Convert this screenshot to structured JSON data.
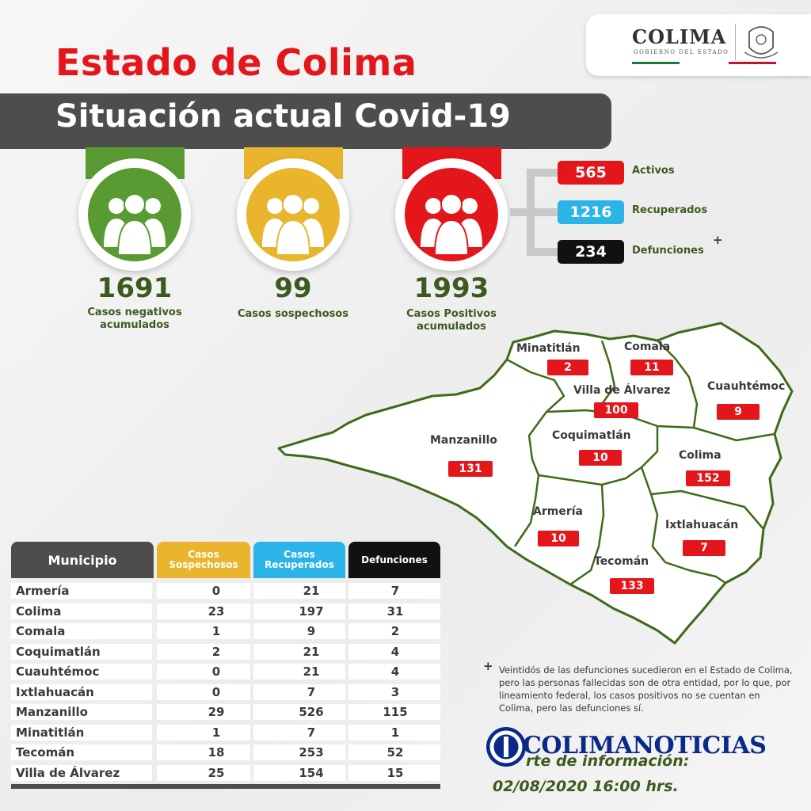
{
  "header": {
    "title": "Estado de Colima",
    "subtitle": "Situación actual Covid-19",
    "logo_title": "COLIMA",
    "logo_subtitle": "GOBIERNO DEL ESTADO"
  },
  "summary": [
    {
      "value": "1691",
      "label_line1": "Casos negativos",
      "label_line2": "acumulados",
      "color": "#5a9a32",
      "icon": "people-group-icon"
    },
    {
      "value": "99",
      "label_line1": "Casos sospechosos",
      "label_line2": "",
      "color": "#e8b52c",
      "icon": "people-group-icon"
    },
    {
      "value": "1993",
      "label_line1": "Casos Positivos",
      "label_line2": "acumulados",
      "color": "#e3161b",
      "icon": "people-group-icon"
    }
  ],
  "breakdown": [
    {
      "value": "565",
      "label": "Activos",
      "color": "#e3161b"
    },
    {
      "value": "1216",
      "label": "Recuperados",
      "color": "#2bb4e8"
    },
    {
      "value": "234",
      "label": "Defunciones",
      "color": "#111111",
      "mark": "+"
    }
  ],
  "map": [
    {
      "name": "Minatitlán",
      "value": "2"
    },
    {
      "name": "Comala",
      "value": "11"
    },
    {
      "name": "Villa de Álvarez",
      "value": "100"
    },
    {
      "name": "Cuauhtémoc",
      "value": "9"
    },
    {
      "name": "Manzanillo",
      "value": "131"
    },
    {
      "name": "Coquimatlán",
      "value": "10"
    },
    {
      "name": "Colima",
      "value": "152"
    },
    {
      "name": "Armería",
      "value": "10"
    },
    {
      "name": "Ixtlahuacán",
      "value": "7"
    },
    {
      "name": "Tecomán",
      "value": "133"
    }
  ],
  "table": {
    "headers": {
      "municipio": "Municipio",
      "sospechosos_1": "Casos",
      "sospechosos_2": "Sospechosos",
      "recuperados_1": "Casos",
      "recuperados_2": "Recuperados",
      "defunciones": "Defunciones"
    },
    "header_colors": {
      "municipio": "#4d4d4d",
      "sospechosos": "#e8b52c",
      "recuperados": "#2bb4e8",
      "defunciones": "#111111"
    },
    "rows": [
      {
        "municipio": "Armería",
        "sospechosos": "0",
        "recuperados": "21",
        "defunciones": "7"
      },
      {
        "municipio": "Colima",
        "sospechosos": "23",
        "recuperados": "197",
        "defunciones": "31"
      },
      {
        "municipio": "Comala",
        "sospechosos": "1",
        "recuperados": "9",
        "defunciones": "2"
      },
      {
        "municipio": "Coquimatlán",
        "sospechosos": "2",
        "recuperados": "21",
        "defunciones": "4"
      },
      {
        "municipio": "Cuauhtémoc",
        "sospechosos": "0",
        "recuperados": "21",
        "defunciones": "4"
      },
      {
        "municipio": "Ixtlahuacán",
        "sospechosos": "0",
        "recuperados": "7",
        "defunciones": "3"
      },
      {
        "municipio": "Manzanillo",
        "sospechosos": "29",
        "recuperados": "526",
        "defunciones": "115"
      },
      {
        "municipio": "Minatitlán",
        "sospechosos": "1",
        "recuperados": "7",
        "defunciones": "1"
      },
      {
        "municipio": "Tecomán",
        "sospechosos": "18",
        "recuperados": "253",
        "defunciones": "52"
      },
      {
        "municipio": "Villa de Álvarez",
        "sospechosos": "25",
        "recuperados": "154",
        "defunciones": "15"
      }
    ]
  },
  "footnote": {
    "mark": "+",
    "text": "Veintidós de las defunciones sucedieron en el Estado de Colima, pero las personas fallecidas son de otra entidad, por lo que, por lineamiento federal, los casos positivos no se cuentan en Colima, pero las defunciones sí."
  },
  "watermark": "COLIMANOTICIAS",
  "source": {
    "line1": "rte de información:",
    "line2": "02/08/2020 16:00 hrs."
  }
}
